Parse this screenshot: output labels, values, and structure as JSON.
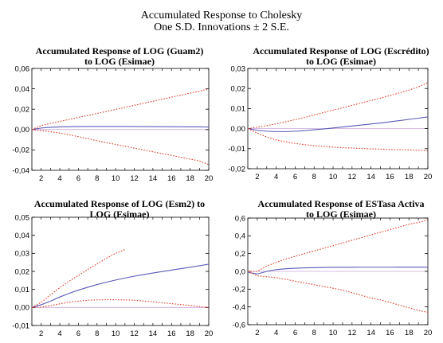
{
  "figure": {
    "title_line1": "Accumulated Response to Cholesky",
    "title_line2": "One S.D. Innovations ± 2 S.E."
  },
  "colors": {
    "response": "#5a5ab8",
    "bands": "#e0402a",
    "zero": "#c8a8d8"
  },
  "chart_data": [
    {
      "type": "line",
      "title_line1": "Accumulated Response of LOG (Guam2)",
      "title_line2": "to LOG (Esimae)",
      "x": [
        1,
        2,
        3,
        4,
        5,
        6,
        7,
        8,
        9,
        10,
        11,
        12,
        13,
        14,
        15,
        16,
        17,
        18,
        19,
        20
      ],
      "xticks": [
        "2",
        "4",
        "6",
        "8",
        "10",
        "12",
        "14",
        "16",
        "18",
        "20"
      ],
      "ylim": [
        -0.04,
        0.06
      ],
      "yticks": [
        "-0,04",
        "-0,02",
        "0,00",
        "0,02",
        "0,04",
        "0,06"
      ],
      "series": [
        {
          "role": "response",
          "values": [
            0.0,
            0.0015,
            0.0022,
            0.0026,
            0.0028,
            0.0029,
            0.003,
            0.003,
            0.003,
            0.003,
            0.003,
            0.0029,
            0.0029,
            0.0028,
            0.0028,
            0.0027,
            0.0027,
            0.0026,
            0.0026,
            0.0025
          ]
        },
        {
          "role": "upper",
          "values": [
            0.0,
            0.004,
            0.006,
            0.008,
            0.01,
            0.012,
            0.0138,
            0.0158,
            0.0178,
            0.0198,
            0.0218,
            0.0238,
            0.0258,
            0.0278,
            0.0298,
            0.0318,
            0.0338,
            0.0358,
            0.0378,
            0.04
          ]
        },
        {
          "role": "lower",
          "values": [
            0.0,
            -0.001,
            -0.002,
            -0.0035,
            -0.005,
            -0.007,
            -0.009,
            -0.011,
            -0.0128,
            -0.0146,
            -0.0164,
            -0.0182,
            -0.02,
            -0.0218,
            -0.0236,
            -0.0254,
            -0.0272,
            -0.029,
            -0.0308,
            -0.0345
          ]
        }
      ]
    },
    {
      "type": "line",
      "title_line1": "Accumulated Response of LOG (Escrédito)",
      "title_line2": "to LOG (Esimae)",
      "x": [
        1,
        2,
        3,
        4,
        5,
        6,
        7,
        8,
        9,
        10,
        11,
        12,
        13,
        14,
        15,
        16,
        17,
        18,
        19,
        20
      ],
      "xticks": [
        "2",
        "4",
        "6",
        "8",
        "10",
        "12",
        "14",
        "16",
        "18",
        "20"
      ],
      "ylim": [
        -0.02,
        0.03
      ],
      "yticks": [
        "-0,02",
        "-0,01",
        "0,00",
        "0,01",
        "0,02",
        "0,03"
      ],
      "series": [
        {
          "role": "response",
          "values": [
            0.0,
            -0.0008,
            -0.0013,
            -0.0015,
            -0.0015,
            -0.0013,
            -0.001,
            -0.0006,
            -0.0002,
            0.0003,
            0.0008,
            0.0013,
            0.0018,
            0.0023,
            0.0028,
            0.0034,
            0.004,
            0.0046,
            0.0052,
            0.0058
          ]
        },
        {
          "role": "upper",
          "values": [
            0.0,
            0.0007,
            0.0015,
            0.0024,
            0.0034,
            0.0045,
            0.0056,
            0.0068,
            0.008,
            0.0092,
            0.0104,
            0.0116,
            0.0128,
            0.014,
            0.0152,
            0.0165,
            0.0178,
            0.0192,
            0.0208,
            0.023
          ]
        },
        {
          "role": "lower",
          "values": [
            0.0,
            -0.0022,
            -0.0042,
            -0.0056,
            -0.0066,
            -0.0074,
            -0.008,
            -0.0085,
            -0.0089,
            -0.0092,
            -0.0095,
            -0.0097,
            -0.0099,
            -0.0101,
            -0.0102,
            -0.0104,
            -0.0105,
            -0.0106,
            -0.0108,
            -0.011
          ]
        }
      ]
    },
    {
      "type": "line",
      "title_line1": "Accumulated Response of LOG (Esm2) to",
      "title_line2": "LOG (Esimae)",
      "x": [
        1,
        2,
        3,
        4,
        5,
        6,
        7,
        8,
        9,
        10,
        11,
        12,
        13,
        14,
        15,
        16,
        17,
        18,
        19,
        20
      ],
      "xticks": [
        "2",
        "4",
        "6",
        "8",
        "10",
        "12",
        "14",
        "16",
        "18",
        "20"
      ],
      "ylim": [
        -0.01,
        0.05
      ],
      "yticks": [
        "-0,01",
        "0,00",
        "0,01",
        "0,02",
        "0,03",
        "0,04",
        "0,05"
      ],
      "series": [
        {
          "role": "response",
          "values": [
            0.0,
            0.0015,
            0.0035,
            0.0058,
            0.0078,
            0.0096,
            0.0112,
            0.0127,
            0.014,
            0.0152,
            0.0163,
            0.0173,
            0.0182,
            0.0191,
            0.0199,
            0.0207,
            0.0215,
            0.0223,
            0.0231,
            0.024
          ]
        },
        {
          "role": "upper",
          "values": [
            0.0,
            0.0028,
            0.007,
            0.011,
            0.0145,
            0.0178,
            0.021,
            0.0242,
            0.0272,
            0.03,
            0.0322,
            null,
            null,
            null,
            null,
            null,
            null,
            null,
            null,
            null
          ]
        },
        {
          "role": "lower",
          "values": [
            0.0,
            0.0002,
            0.001,
            0.002,
            0.0029,
            0.0035,
            0.004,
            0.0042,
            0.0043,
            0.0043,
            0.0042,
            0.004,
            0.0036,
            0.0031,
            0.0026,
            0.0021,
            0.0016,
            0.0011,
            0.0005,
            0.0
          ]
        }
      ]
    },
    {
      "type": "line",
      "title_line1": "Accumulated Response of ESTasa Activa",
      "title_line2": "to LOG (Esimae)",
      "x": [
        1,
        2,
        3,
        4,
        5,
        6,
        7,
        8,
        9,
        10,
        11,
        12,
        13,
        14,
        15,
        16,
        17,
        18,
        19,
        20
      ],
      "xticks": [
        "2",
        "4",
        "6",
        "8",
        "10",
        "12",
        "14",
        "16",
        "18",
        "20"
      ],
      "ylim": [
        -0.6,
        0.6
      ],
      "yticks": [
        "-0,6",
        "-0,4",
        "-0,2",
        "0,0",
        "0,2",
        "0,4",
        "0,6"
      ],
      "series": [
        {
          "role": "response",
          "values": [
            -0.01,
            -0.03,
            0.0,
            0.02,
            0.03,
            0.035,
            0.04,
            0.042,
            0.044,
            0.045,
            0.046,
            0.046,
            0.047,
            0.047,
            0.047,
            0.047,
            0.048,
            0.048,
            0.048,
            0.048
          ]
        },
        {
          "role": "upper",
          "values": [
            0.0,
            0.0,
            0.06,
            0.1,
            0.14,
            0.17,
            0.2,
            0.23,
            0.26,
            0.29,
            0.32,
            0.35,
            0.38,
            0.41,
            0.44,
            0.47,
            0.5,
            0.53,
            0.55,
            0.58
          ]
        },
        {
          "role": "lower",
          "values": [
            0.0,
            -0.05,
            -0.06,
            -0.07,
            -0.09,
            -0.11,
            -0.13,
            -0.15,
            -0.17,
            -0.19,
            -0.21,
            -0.24,
            -0.27,
            -0.3,
            -0.32,
            -0.35,
            -0.38,
            -0.41,
            -0.44,
            -0.46
          ]
        }
      ]
    }
  ]
}
